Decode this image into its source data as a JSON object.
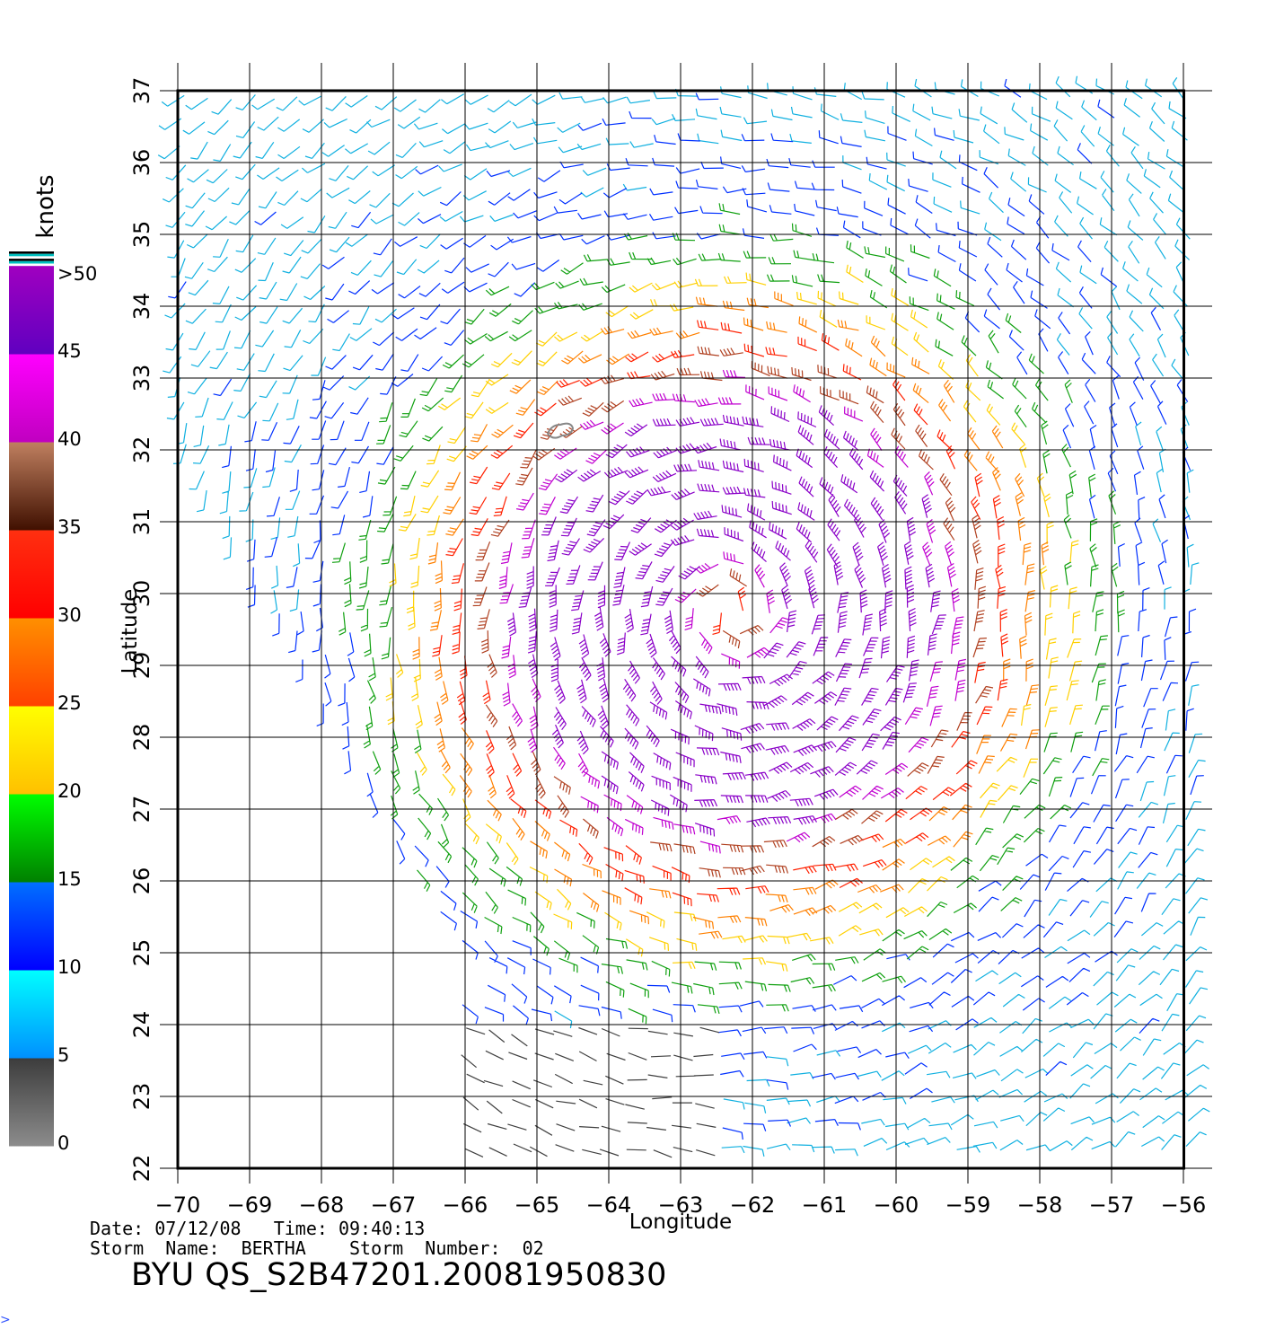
{
  "map": {
    "xlabel": "Longitude",
    "ylabel": "Latitude",
    "lon_range": [
      -70,
      -56
    ],
    "lat_range": [
      22,
      37
    ],
    "lon_ticks": [
      "−70",
      "−69",
      "−68",
      "−67",
      "−66",
      "−65",
      "−64",
      "−63",
      "−62",
      "−61",
      "−60",
      "−59",
      "−58",
      "−57",
      "−56"
    ],
    "lat_ticks": [
      "22",
      "23",
      "24",
      "25",
      "26",
      "27",
      "28",
      "29",
      "30",
      "31",
      "32",
      "33",
      "34",
      "35",
      "36",
      "37"
    ],
    "storm_center": {
      "lon": -62.3,
      "lat": 29.7
    },
    "island_outline": {
      "lon": -64.7,
      "lat": 32.3
    },
    "grid": true
  },
  "colorbar": {
    "title": "knots",
    "labels": [
      ">50",
      "45",
      "40",
      "35",
      "30",
      "25",
      "20",
      "15",
      "10",
      "5",
      "0"
    ],
    "bands": [
      {
        "from": 0,
        "to": 5,
        "top": "#3c3c3c",
        "bottom": "#8c8c8c"
      },
      {
        "from": 5,
        "to": 10,
        "top": "#00ffff",
        "bottom": "#0090ff"
      },
      {
        "from": 10,
        "to": 15,
        "top": "#0070ff",
        "bottom": "#0000ff"
      },
      {
        "from": 15,
        "to": 20,
        "top": "#00ff00",
        "bottom": "#008000"
      },
      {
        "from": 20,
        "to": 25,
        "top": "#ffff00",
        "bottom": "#ffc000"
      },
      {
        "from": 25,
        "to": 30,
        "top": "#ff9000",
        "bottom": "#ff4000"
      },
      {
        "from": 30,
        "to": 35,
        "top": "#ff3010",
        "bottom": "#ff0000"
      },
      {
        "from": 35,
        "to": 40,
        "top": "#c08060",
        "bottom": "#401000"
      },
      {
        "from": 40,
        "to": 45,
        "top": "#ff00ff",
        "bottom": "#c000c0"
      },
      {
        "from": 45,
        "to": 50,
        "top": "#a000c0",
        "bottom": "#6000c0"
      }
    ]
  },
  "info": {
    "date_line": "Date: 07/12/08   Time: 09:40:13",
    "storm_line": "Storm  Name:  BERTHA    Storm  Number:  02",
    "product": "BYU  QS_S2B47201.20081950830"
  }
}
